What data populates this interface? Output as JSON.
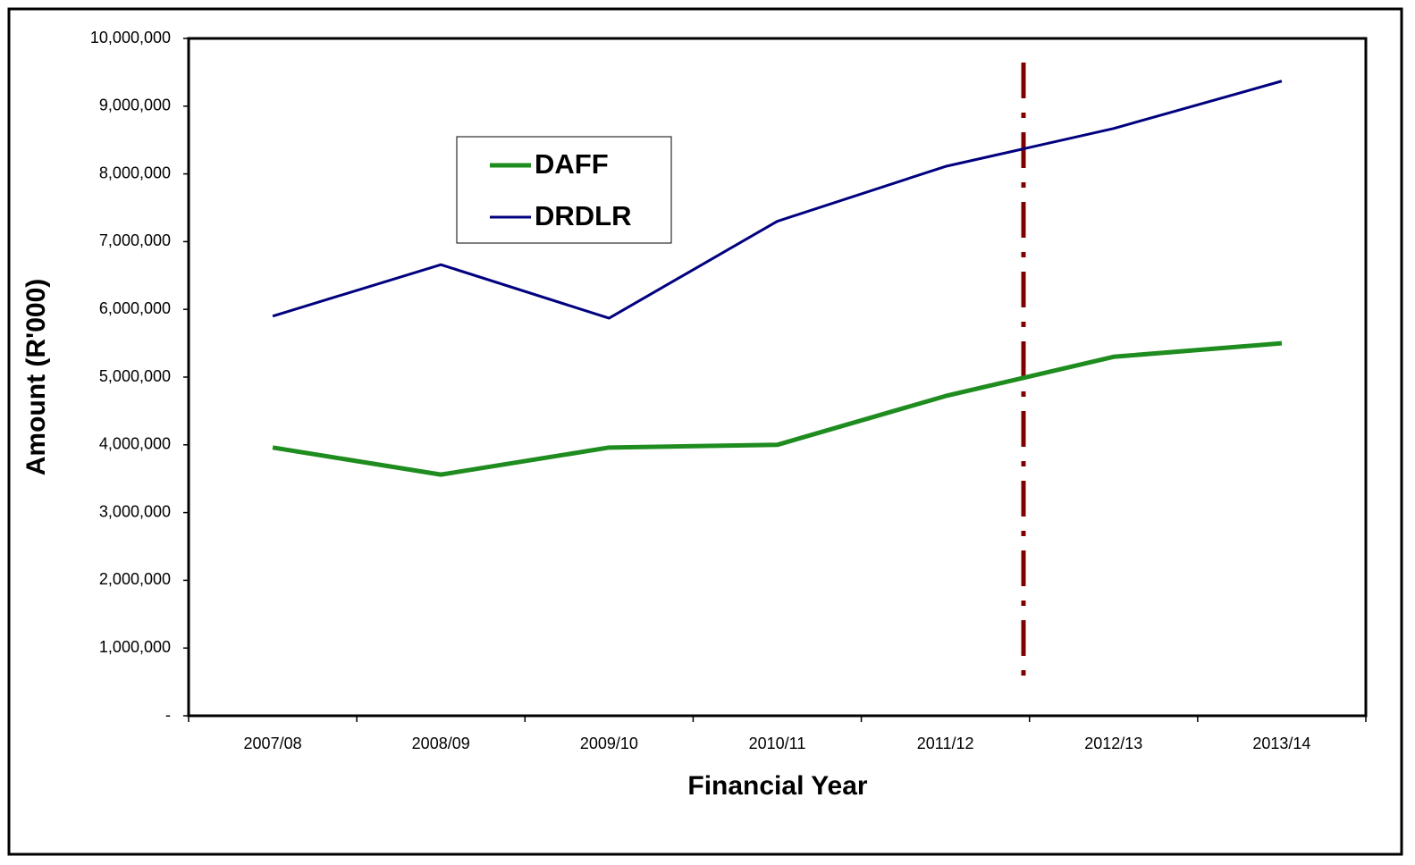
{
  "chart_data": {
    "type": "line",
    "x_label": "Financial Year",
    "y_label": "Amount (R'000)",
    "categories": [
      "2007/08",
      "2008/09",
      "2009/10",
      "2010/11",
      "2011/12",
      "2012/13",
      "2013/14"
    ],
    "series": [
      {
        "name": "DAFF",
        "color": "#1e8c1e",
        "values": [
          3960000,
          3560000,
          3960000,
          4000000,
          4720000,
          5300000,
          5500000
        ]
      },
      {
        "name": "DRDLR",
        "color": "#00007f",
        "values": [
          5900000,
          6660000,
          5870000,
          7300000,
          8110000,
          8670000,
          9370000
        ]
      }
    ],
    "ylim": [
      0,
      10000000
    ],
    "yticks": [
      {
        "value": 0,
        "label": "-"
      },
      {
        "value": 1000000,
        "label": "1,000,000"
      },
      {
        "value": 2000000,
        "label": "2,000,000"
      },
      {
        "value": 3000000,
        "label": "3,000,000"
      },
      {
        "value": 4000000,
        "label": "4,000,000"
      },
      {
        "value": 5000000,
        "label": "5,000,000"
      },
      {
        "value": 6000000,
        "label": "6,000,000"
      },
      {
        "value": 7000000,
        "label": "7,000,000"
      },
      {
        "value": 8000000,
        "label": "8,000,000"
      },
      {
        "value": 9000000,
        "label": "9,000,000"
      },
      {
        "value": 10000000,
        "label": "10,000,000"
      }
    ],
    "grid": false
  }
}
